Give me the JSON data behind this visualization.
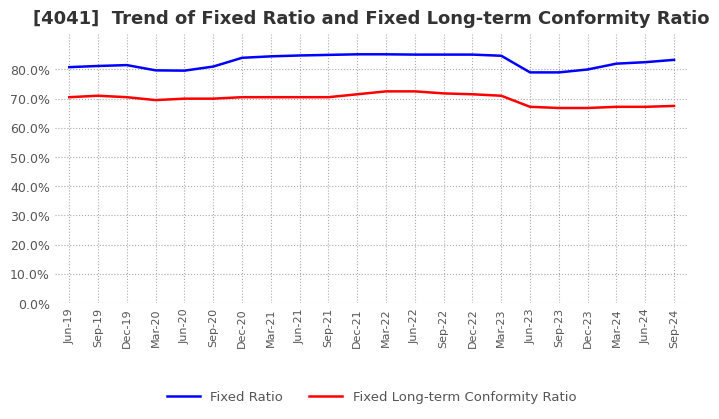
{
  "title": "[4041]  Trend of Fixed Ratio and Fixed Long-term Conformity Ratio",
  "title_fontsize": 13,
  "xlabel": "",
  "ylabel": "",
  "ylim": [
    0.0,
    0.92
  ],
  "yticks": [
    0.0,
    0.1,
    0.2,
    0.3,
    0.4,
    0.5,
    0.6,
    0.7,
    0.8
  ],
  "background_color": "#ffffff",
  "grid_color": "#aaaaaa",
  "fixed_ratio_color": "#0000ff",
  "fixed_lt_color": "#ff0000",
  "dates": [
    "Jun-19",
    "Sep-19",
    "Dec-19",
    "Mar-20",
    "Jun-20",
    "Sep-20",
    "Dec-20",
    "Mar-21",
    "Jun-21",
    "Sep-21",
    "Dec-21",
    "Mar-22",
    "Jun-22",
    "Sep-22",
    "Dec-22",
    "Mar-23",
    "Jun-23",
    "Sep-23",
    "Dec-23",
    "Mar-24",
    "Jun-24",
    "Sep-24"
  ],
  "fixed_ratio": [
    0.808,
    0.812,
    0.815,
    0.797,
    0.796,
    0.81,
    0.84,
    0.845,
    0.848,
    0.85,
    0.852,
    0.852,
    0.851,
    0.851,
    0.851,
    0.847,
    0.79,
    0.79,
    0.8,
    0.82,
    0.825,
    0.833
  ],
  "fixed_lt_ratio": [
    0.705,
    0.71,
    0.705,
    0.695,
    0.7,
    0.7,
    0.705,
    0.705,
    0.705,
    0.705,
    0.715,
    0.725,
    0.725,
    0.718,
    0.715,
    0.71,
    0.672,
    0.668,
    0.668,
    0.672,
    0.672,
    0.675
  ],
  "legend_labels": [
    "Fixed Ratio",
    "Fixed Long-term Conformity Ratio"
  ]
}
